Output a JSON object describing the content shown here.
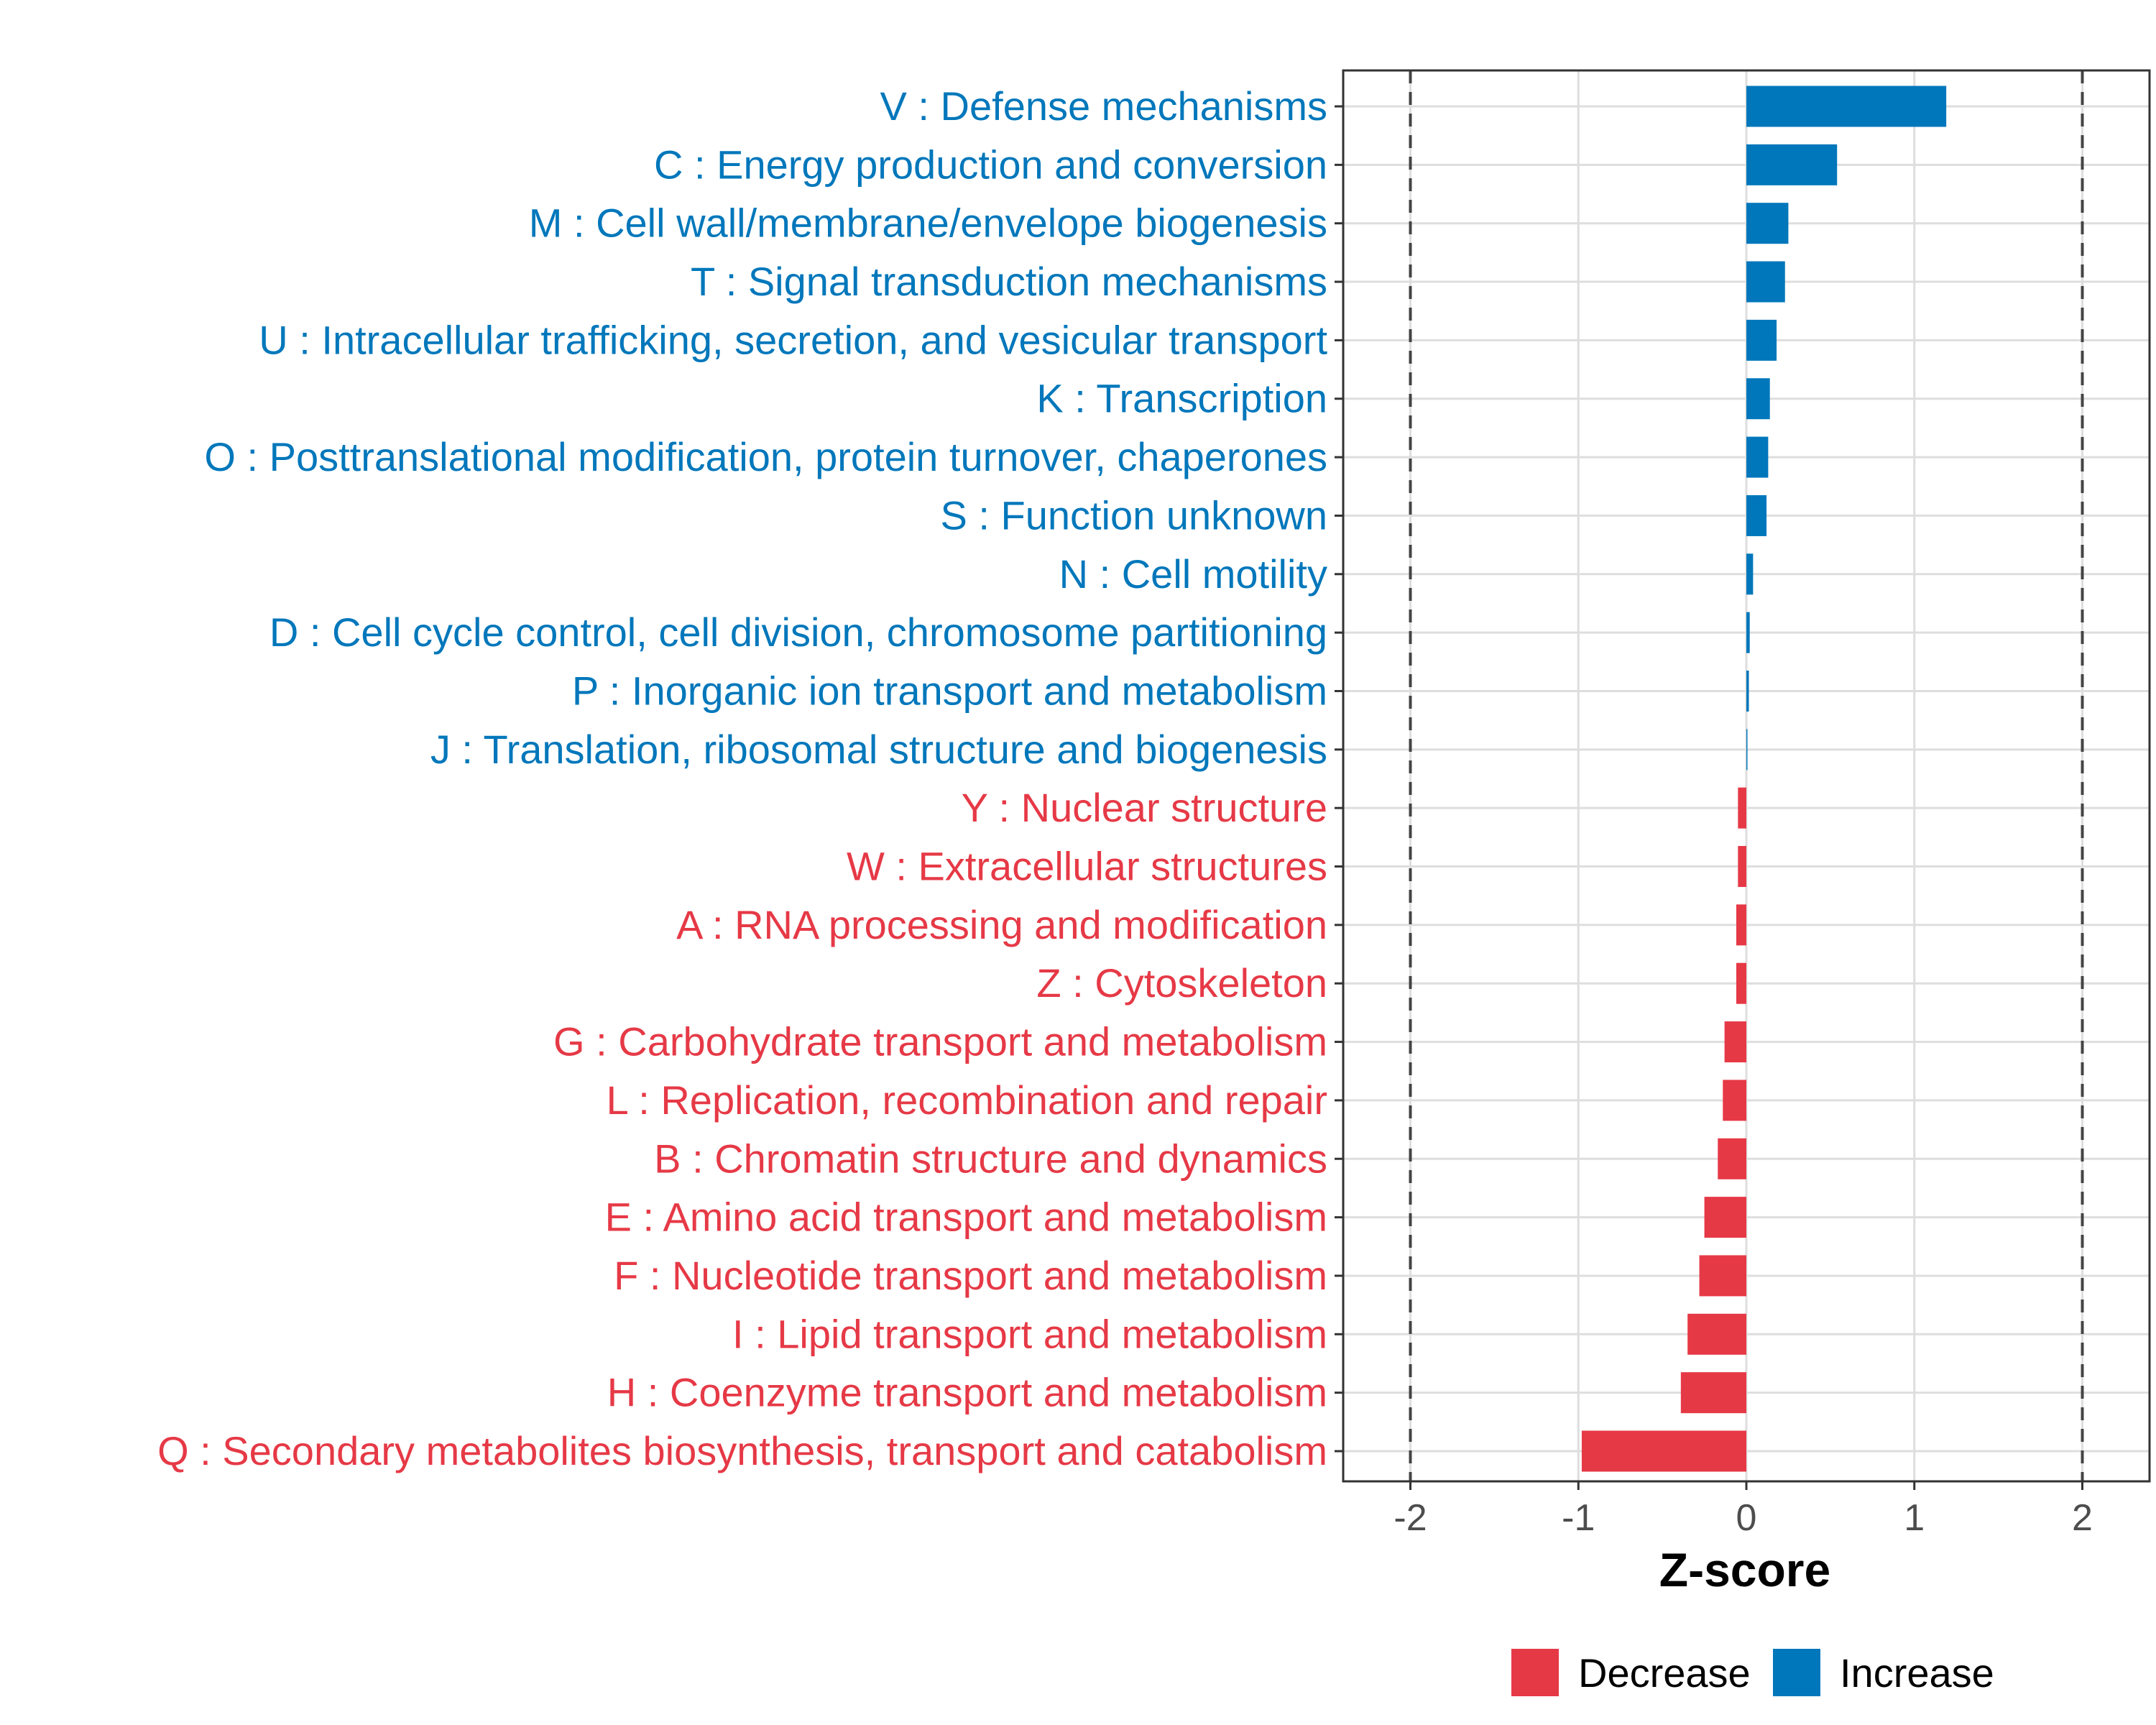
{
  "chart_data": {
    "type": "bar",
    "orientation": "horizontal",
    "title": "",
    "xlabel": "Z-score",
    "ylabel": "",
    "xlim": [
      -2.4,
      2.4
    ],
    "x_ticks": [
      -2,
      -1,
      0,
      1,
      2
    ],
    "x_tick_labels": [
      "-2",
      "-1",
      "0",
      "1",
      "2"
    ],
    "reference_lines": [
      -2,
      2
    ],
    "grid": true,
    "colors": {
      "Increase": "#0077bb",
      "Decrease": "#e63946"
    },
    "legend": {
      "position": "bottom",
      "entries": [
        {
          "name": "Decrease",
          "color": "#e63946"
        },
        {
          "name": "Increase",
          "color": "#0077bb"
        }
      ]
    },
    "bars": [
      {
        "label": "V : Defense mechanisms",
        "value": 1.19,
        "direction": "Increase"
      },
      {
        "label": "C : Energy production and conversion",
        "value": 0.54,
        "direction": "Increase"
      },
      {
        "label": "M : Cell wall/membrane/envelope biogenesis",
        "value": 0.25,
        "direction": "Increase"
      },
      {
        "label": "T : Signal transduction mechanisms",
        "value": 0.23,
        "direction": "Increase"
      },
      {
        "label": "U : Intracellular trafficking, secretion, and vesicular transport",
        "value": 0.18,
        "direction": "Increase"
      },
      {
        "label": "K : Transcription",
        "value": 0.14,
        "direction": "Increase"
      },
      {
        "label": "O : Posttranslational modification, protein turnover, chaperones",
        "value": 0.13,
        "direction": "Increase"
      },
      {
        "label": "S : Function unknown",
        "value": 0.12,
        "direction": "Increase"
      },
      {
        "label": "N : Cell motility",
        "value": 0.04,
        "direction": "Increase"
      },
      {
        "label": "D : Cell cycle control, cell division, chromosome partitioning",
        "value": 0.02,
        "direction": "Increase"
      },
      {
        "label": "P : Inorganic ion transport and metabolism",
        "value": 0.015,
        "direction": "Increase"
      },
      {
        "label": "J : Translation, ribosomal structure and biogenesis",
        "value": 0.005,
        "direction": "Increase"
      },
      {
        "label": "Y : Nuclear structure",
        "value": -0.05,
        "direction": "Decrease"
      },
      {
        "label": "W : Extracellular structures",
        "value": -0.05,
        "direction": "Decrease"
      },
      {
        "label": "A : RNA processing and modification",
        "value": -0.06,
        "direction": "Decrease"
      },
      {
        "label": "Z : Cytoskeleton",
        "value": -0.06,
        "direction": "Decrease"
      },
      {
        "label": "G : Carbohydrate transport and metabolism",
        "value": -0.13,
        "direction": "Decrease"
      },
      {
        "label": "L : Replication, recombination and repair",
        "value": -0.14,
        "direction": "Decrease"
      },
      {
        "label": "B : Chromatin structure and dynamics",
        "value": -0.17,
        "direction": "Decrease"
      },
      {
        "label": "E : Amino acid transport and metabolism",
        "value": -0.25,
        "direction": "Decrease"
      },
      {
        "label": "F : Nucleotide transport and metabolism",
        "value": -0.28,
        "direction": "Decrease"
      },
      {
        "label": "I : Lipid transport and metabolism",
        "value": -0.35,
        "direction": "Decrease"
      },
      {
        "label": "H : Coenzyme transport and metabolism",
        "value": -0.39,
        "direction": "Decrease"
      },
      {
        "label": "Q : Secondary metabolites biosynthesis, transport and catabolism",
        "value": -0.98,
        "direction": "Decrease"
      }
    ]
  }
}
